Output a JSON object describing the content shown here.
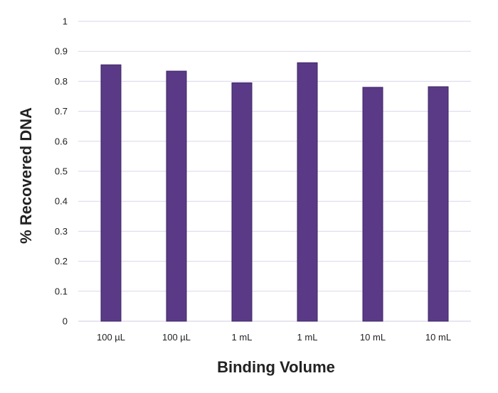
{
  "chart_data": {
    "type": "bar",
    "title": "",
    "xlabel": "Binding Volume",
    "ylabel": "% Recovered DNA",
    "categories": [
      "100 µL",
      "100 µL",
      "1 mL",
      "1 mL",
      "10 mL",
      "10 mL"
    ],
    "values": [
      0.855,
      0.834,
      0.795,
      0.862,
      0.78,
      0.782
    ],
    "ylim": [
      0,
      1
    ],
    "yticks": [
      0,
      0.1,
      0.2,
      0.3,
      0.4,
      0.5,
      0.6,
      0.7,
      0.8,
      0.9,
      1
    ],
    "ytick_labels": [
      "0",
      "0.1",
      "0.2",
      "0.3",
      "0.4",
      "0.5",
      "0.6",
      "0.7",
      "0.8",
      "0.9",
      "1"
    ],
    "grid": true,
    "legend": "none",
    "colors": {
      "bar": "#5a3a86",
      "bar_edge": "#3f2566",
      "grid": "#d9d6ec",
      "axis": "#cfcde0"
    }
  }
}
